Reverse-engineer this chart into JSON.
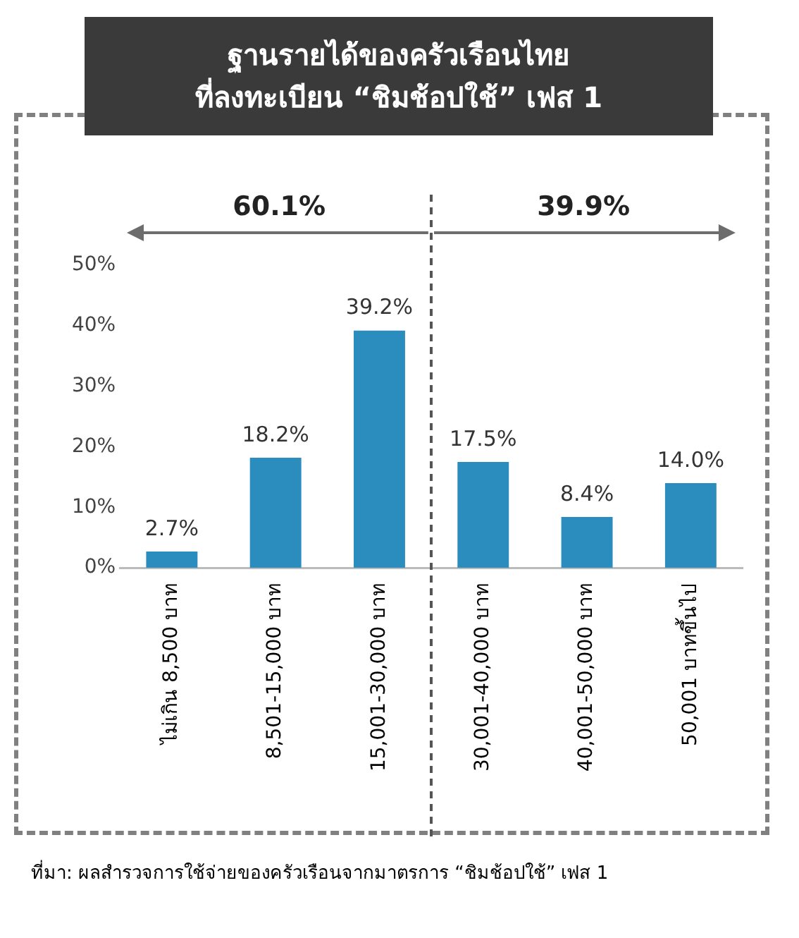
{
  "chart_data": {
    "type": "bar",
    "title": "ฐานรายได้ของครัวเรือนไทย\nที่ลงทะเบียน “ชิมช้อปใช้” เฟส 1",
    "categories": [
      "ไม่เกิน 8,500 บาท",
      "8,501-15,000 บาท",
      "15,001-30,000 บาท",
      "30,001-40,000 บาท",
      "40,001-50,000 บาท",
      "50,001 บาทขึ้นไป"
    ],
    "values": [
      2.7,
      18.2,
      39.2,
      17.5,
      8.4,
      14.0
    ],
    "value_labels": [
      "2.7%",
      "18.2%",
      "39.2%",
      "17.5%",
      "8.4%",
      "14.0%"
    ],
    "color": "#2b8cbe",
    "ylim": [
      0,
      50
    ],
    "yticks": [
      {
        "value": 0,
        "label": "0%"
      },
      {
        "value": 10,
        "label": "10%"
      },
      {
        "value": 20,
        "label": "20%"
      },
      {
        "value": 30,
        "label": "30%"
      },
      {
        "value": 40,
        "label": "40%"
      },
      {
        "value": 50,
        "label": "50%"
      }
    ],
    "annotations": [
      "60.1%",
      "39.9%",
      "ที่มา: ผลสำรวจการใช้จ่ายของครัวเรือนจากมาตรการ “ชิมช้อปใช้” เฟส 1"
    ]
  }
}
